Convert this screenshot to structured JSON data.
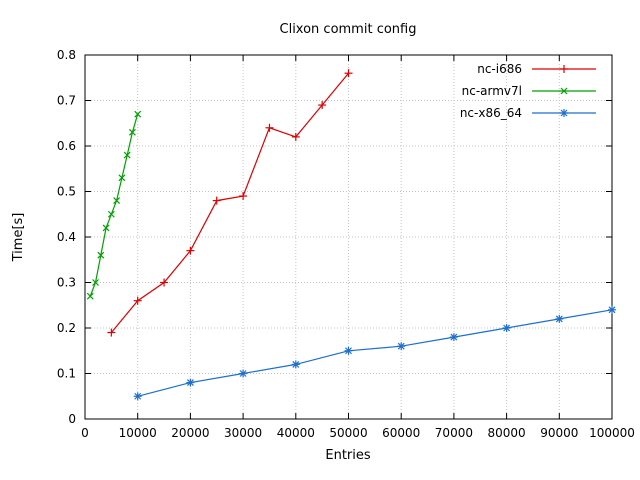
{
  "chart_data": {
    "type": "line",
    "title": "Clixon commit config",
    "xlabel": "Entries",
    "ylabel": "Time[s]",
    "xlim": [
      0,
      100000
    ],
    "ylim": [
      0,
      0.8
    ],
    "xticks": [
      0,
      10000,
      20000,
      30000,
      40000,
      50000,
      60000,
      70000,
      80000,
      90000,
      100000
    ],
    "yticks": [
      0,
      0.1,
      0.2,
      0.3,
      0.4,
      0.5,
      0.6,
      0.7,
      0.8
    ],
    "grid": true,
    "legend_position": "top-right",
    "background_color": "#ffffff",
    "grid_color": "#c4c4c4",
    "axis_color": "#000000",
    "series": [
      {
        "name": "nc-i686",
        "color": "#dd0000",
        "marker": "plus",
        "x": [
          5000,
          10000,
          15000,
          20000,
          25000,
          30000,
          35000,
          40000,
          45000,
          50000
        ],
        "y": [
          0.19,
          0.26,
          0.3,
          0.37,
          0.48,
          0.49,
          0.64,
          0.62,
          0.69,
          0.76
        ]
      },
      {
        "name": "nc-armv7l",
        "color": "#00a000",
        "marker": "cross",
        "x": [
          1000,
          2000,
          3000,
          4000,
          5000,
          6000,
          7000,
          8000,
          9000,
          10000
        ],
        "y": [
          0.27,
          0.3,
          0.36,
          0.42,
          0.45,
          0.48,
          0.53,
          0.58,
          0.63,
          0.67
        ]
      },
      {
        "name": "nc-x86_64",
        "color": "#1c6fd0",
        "marker": "star",
        "x": [
          10000,
          20000,
          30000,
          40000,
          50000,
          60000,
          70000,
          80000,
          90000,
          100000
        ],
        "y": [
          0.05,
          0.08,
          0.1,
          0.12,
          0.15,
          0.16,
          0.18,
          0.2,
          0.22,
          0.24
        ]
      }
    ]
  }
}
